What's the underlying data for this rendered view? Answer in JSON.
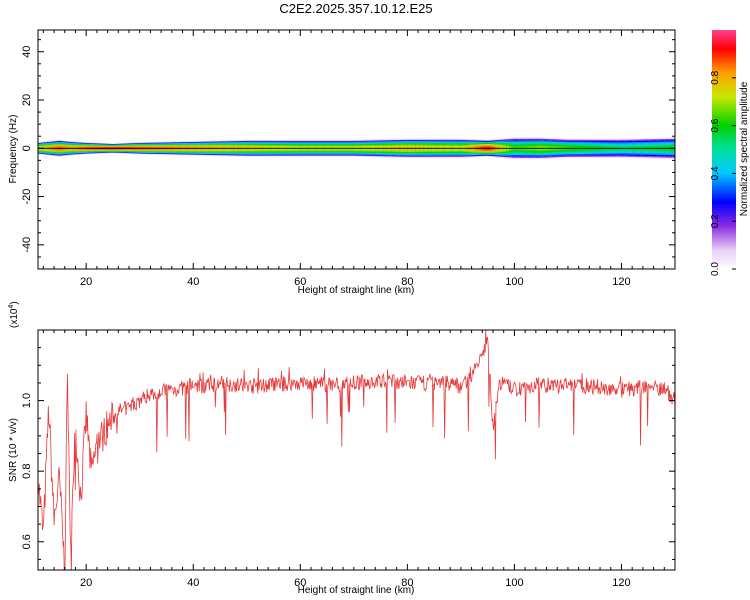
{
  "title": "C2E2.2025.357.10.12.E25",
  "chart_data": [
    {
      "type": "heatmap",
      "xlabel": "Height of straight line (km)",
      "ylabel": "Frequency (Hz)",
      "xlim": [
        11,
        130
      ],
      "ylim": [
        -50,
        49
      ],
      "x_ticks": [
        20,
        40,
        60,
        80,
        100,
        120
      ],
      "x_tick_labels": [
        "20",
        "40",
        "60",
        "80",
        "100",
        "120"
      ],
      "y_ticks": [
        -40,
        -20,
        0,
        20,
        40
      ],
      "y_tick_labels": [
        "-40",
        "-20",
        "0",
        "20",
        "40"
      ],
      "colorbar": {
        "label": "Normalized spectral amplitude",
        "range": [
          0,
          1
        ],
        "ticks": [
          0,
          0.2,
          0.4,
          0.6,
          0.8
        ],
        "tick_labels": [
          "0.0",
          "0.2",
          "0.4",
          "0.6",
          "0.8"
        ]
      },
      "band": {
        "center_frequency": 0,
        "x": [
          11,
          15,
          17,
          20,
          25,
          30,
          40,
          50,
          60,
          70,
          80,
          90,
          95,
          100,
          105,
          110,
          120,
          130
        ],
        "half_width_hz": [
          2.5,
          3.5,
          3,
          2.5,
          2,
          2.5,
          3,
          3.5,
          3.5,
          3.5,
          4,
          4,
          3.5,
          4.5,
          4.5,
          4,
          4,
          4.5
        ],
        "peak_amplitude": [
          0.8,
          0.9,
          0.85,
          0.9,
          0.95,
          0.9,
          0.85,
          0.8,
          0.75,
          0.75,
          0.8,
          0.75,
          0.95,
          0.65,
          0.7,
          0.65,
          0.55,
          0.6
        ]
      },
      "grid": false
    },
    {
      "type": "line",
      "xlabel": "Height of straight line (km)",
      "ylabel": "SNR (10 * v/v)",
      "y_multiplier_label": "(x10",
      "y_multiplier_exp": "4",
      "y_multiplier_close": ")",
      "xlim": [
        11,
        130
      ],
      "ylim": [
        0.52,
        1.2
      ],
      "x_ticks": [
        20,
        40,
        60,
        80,
        100,
        120
      ],
      "x_tick_labels": [
        "20",
        "40",
        "60",
        "80",
        "100",
        "120"
      ],
      "y_ticks": [
        0.6,
        0.8,
        1.0
      ],
      "y_tick_labels": [
        "0.6",
        "0.8",
        "1.0"
      ],
      "series": [
        {
          "color": "#e8393a",
          "x": [
            11,
            12,
            13,
            14,
            15,
            16,
            16.5,
            17,
            18,
            19,
            20,
            21,
            22,
            23,
            24,
            25,
            26,
            28,
            30,
            32,
            35,
            38,
            40,
            42,
            45,
            48,
            50,
            55,
            60,
            65,
            70,
            75,
            80,
            85,
            88,
            90,
            92,
            93,
            94,
            95,
            96,
            97,
            98,
            100,
            102,
            105,
            108,
            110,
            115,
            120,
            125,
            128,
            130
          ],
          "y": [
            0.78,
            0.62,
            0.98,
            0.66,
            0.78,
            0.52,
            1.1,
            0.6,
            0.92,
            0.72,
            0.96,
            0.79,
            0.88,
            0.9,
            0.93,
            0.95,
            0.97,
            0.98,
            1.0,
            1.02,
            1.03,
            1.035,
            1.045,
            1.04,
            1.05,
            1.045,
            1.04,
            1.045,
            1.05,
            1.045,
            1.05,
            1.055,
            1.05,
            1.05,
            1.05,
            1.04,
            1.07,
            1.1,
            1.12,
            1.18,
            0.92,
            1.04,
            1.05,
            1.03,
            1.04,
            1.045,
            1.04,
            1.045,
            1.04,
            1.03,
            1.04,
            1.035,
            1.0
          ]
        }
      ],
      "grid": false
    }
  ]
}
